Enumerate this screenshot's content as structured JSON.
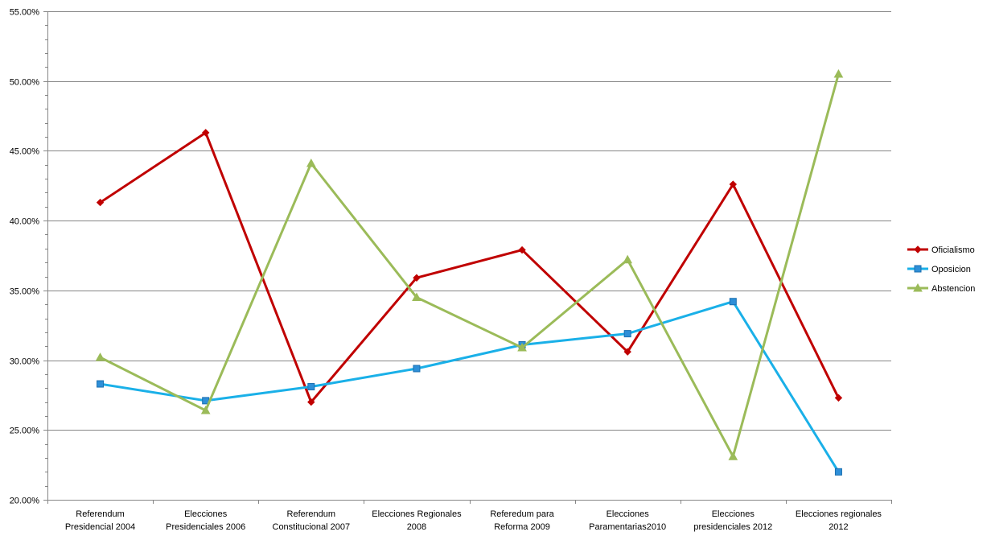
{
  "chart_data": {
    "type": "line",
    "categories": [
      [
        "Referendum",
        "Presidencial 2004"
      ],
      [
        "Elecciones",
        "Presidenciales 2006"
      ],
      [
        "Referendum",
        "Constitucional  2007"
      ],
      [
        "Elecciones Regionales",
        "2008"
      ],
      [
        "Referedum para",
        "Reforma 2009"
      ],
      [
        "Elecciones",
        "Paramentarias2010"
      ],
      [
        "Elecciones",
        "presidenciales 2012"
      ],
      [
        "Elecciones regionales",
        "2012"
      ]
    ],
    "series": [
      {
        "name": "Oficialismo",
        "color": "#c00000",
        "marker": "diamond",
        "values": [
          41.3,
          46.3,
          27.0,
          35.9,
          37.9,
          30.6,
          42.6,
          27.3
        ]
      },
      {
        "name": "Oposicion",
        "color": "#1ab0e8",
        "marker": "square",
        "values": [
          28.3,
          27.1,
          28.1,
          29.4,
          31.1,
          31.9,
          34.2,
          22.0
        ]
      },
      {
        "name": "Abstencion",
        "color": "#9bbb59",
        "marker": "triangle",
        "values": [
          30.2,
          26.4,
          44.1,
          34.5,
          30.9,
          37.2,
          23.1,
          50.5
        ]
      }
    ],
    "ylim": [
      20,
      55
    ],
    "y_ticks": [
      "20.00%",
      "25.00%",
      "30.00%",
      "35.00%",
      "40.00%",
      "45.00%",
      "50.00%",
      "55.00%"
    ],
    "y_tick_values": [
      20,
      25,
      30,
      35,
      40,
      45,
      50,
      55
    ],
    "grid": true,
    "legend_position": "right",
    "title": "",
    "xlabel": "",
    "ylabel": ""
  }
}
